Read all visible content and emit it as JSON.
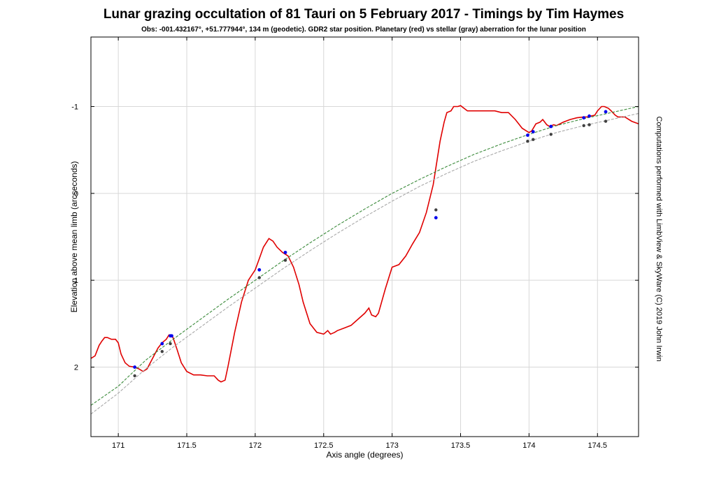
{
  "chart_data": {
    "type": "line",
    "title": "Lunar grazing occultation of 81 Tauri on 5 February 2017 - Timings by Tim Haymes",
    "subtitle": "Obs: -001.432167°, +51.777944°, 134 m (geodetic). GDR2 star position. Planetary (red) vs stellar (gray) aberration for the lunar position",
    "side_note": "Computations performed with LimbView & SkyWare (C) 2019 John Irwin",
    "xlabel": "Axis angle (degrees)",
    "ylabel": "Elevation above mean limb (arcseconds)",
    "xlim": [
      170.8,
      174.8
    ],
    "ylim": [
      2.8,
      -1.8
    ],
    "y_inverted": true,
    "grid": true,
    "x_ticks": [
      171,
      171.5,
      172,
      172.5,
      173,
      173.5,
      174,
      174.5
    ],
    "x_tick_labels": [
      "171",
      "171.5",
      "172",
      "172.5",
      "173",
      "173.5",
      "174",
      "174.5"
    ],
    "y_ticks": [
      -1,
      0,
      1,
      2
    ],
    "y_tick_labels": [
      "-1",
      "0",
      "1",
      "2"
    ],
    "colors": {
      "limb": "#e00000",
      "planetary": "#3a8a3a",
      "stellar": "#a8a8a8",
      "planetary_points": "#0000ee",
      "stellar_points": "#404040"
    },
    "series": [
      {
        "style": "solid",
        "x": [
          170.8,
          170.83,
          170.86,
          170.88,
          170.9,
          170.92,
          170.95,
          170.98,
          171.0,
          171.02,
          171.05,
          171.08,
          171.12,
          171.15,
          171.18,
          171.21,
          171.25,
          171.29,
          171.32,
          171.35,
          171.37,
          171.4,
          171.43,
          171.46,
          171.5,
          171.55,
          171.6,
          171.65,
          171.7,
          171.73,
          171.75,
          171.78,
          171.8,
          171.85,
          171.9,
          171.95,
          172.0,
          172.03,
          172.06,
          172.1,
          172.13,
          172.16,
          172.2,
          172.24,
          172.28,
          172.32,
          172.35,
          172.4,
          172.45,
          172.5,
          172.53,
          172.55,
          172.58,
          172.6,
          172.65,
          172.7,
          172.75,
          172.8,
          172.83,
          172.85,
          172.88,
          172.9,
          172.95,
          173.0,
          173.05,
          173.1,
          173.15,
          173.2,
          173.25,
          173.3,
          173.35,
          173.38,
          173.4,
          173.43,
          173.45,
          173.48,
          173.5,
          173.55,
          173.6,
          173.65,
          173.7,
          173.75,
          173.8,
          173.85,
          173.9,
          173.95,
          174.0,
          174.02,
          174.05,
          174.08,
          174.1,
          174.13,
          174.15,
          174.18,
          174.2,
          174.25,
          174.3,
          174.35,
          174.4,
          174.43,
          174.45,
          174.48,
          174.5,
          174.53,
          174.55,
          174.58,
          174.6,
          174.63,
          174.65,
          174.7,
          174.75,
          174.8
        ],
        "y": [
          1.9,
          1.87,
          1.75,
          1.7,
          1.66,
          1.66,
          1.68,
          1.68,
          1.72,
          1.85,
          1.95,
          1.99,
          2.0,
          2.02,
          2.05,
          2.02,
          1.9,
          1.78,
          1.72,
          1.68,
          1.63,
          1.66,
          1.8,
          1.95,
          2.05,
          2.09,
          2.09,
          2.1,
          2.1,
          2.15,
          2.17,
          2.15,
          2.0,
          1.6,
          1.25,
          1.0,
          0.88,
          0.75,
          0.62,
          0.52,
          0.55,
          0.62,
          0.68,
          0.72,
          0.85,
          1.05,
          1.25,
          1.5,
          1.6,
          1.62,
          1.58,
          1.62,
          1.6,
          1.58,
          1.55,
          1.52,
          1.45,
          1.38,
          1.32,
          1.4,
          1.42,
          1.38,
          1.1,
          0.85,
          0.82,
          0.72,
          0.58,
          0.45,
          0.22,
          -0.1,
          -0.6,
          -0.82,
          -0.93,
          -0.95,
          -1.0,
          -1.0,
          -1.01,
          -0.95,
          -0.95,
          -0.95,
          -0.95,
          -0.95,
          -0.93,
          -0.93,
          -0.85,
          -0.75,
          -0.7,
          -0.72,
          -0.8,
          -0.82,
          -0.85,
          -0.79,
          -0.77,
          -0.79,
          -0.78,
          -0.82,
          -0.85,
          -0.87,
          -0.88,
          -0.88,
          -0.89,
          -0.9,
          -0.95,
          -1.0,
          -1.0,
          -0.98,
          -0.95,
          -0.9,
          -0.88,
          -0.88,
          -0.83,
          -0.8
        ]
      },
      {
        "style": "dashed",
        "x": [
          170.8,
          171.0,
          171.2,
          171.4,
          171.6,
          171.8,
          172.0,
          172.2,
          172.4,
          172.6,
          172.8,
          173.0,
          173.2,
          173.4,
          173.6,
          173.8,
          174.0,
          174.2,
          174.4,
          174.6,
          174.8
        ],
        "y": [
          2.44,
          2.22,
          1.92,
          1.68,
          1.45,
          1.22,
          1.0,
          0.78,
          0.57,
          0.37,
          0.18,
          0.0,
          -0.16,
          -0.31,
          -0.45,
          -0.57,
          -0.68,
          -0.78,
          -0.86,
          -0.93,
          -1.0
        ]
      },
      {
        "style": "dashed",
        "x": [
          170.8,
          171.0,
          171.2,
          171.4,
          171.6,
          171.8,
          172.0,
          172.2,
          172.4,
          172.6,
          172.8,
          173.0,
          173.2,
          173.4,
          173.6,
          173.8,
          174.0,
          174.2,
          174.4,
          174.6,
          174.8
        ],
        "y": [
          2.54,
          2.3,
          2.02,
          1.77,
          1.54,
          1.31,
          1.09,
          0.87,
          0.66,
          0.46,
          0.27,
          0.09,
          -0.08,
          -0.23,
          -0.37,
          -0.49,
          -0.6,
          -0.7,
          -0.78,
          -0.85,
          -0.92
        ]
      }
    ],
    "planetary_points": [
      [
        171.12,
        2.0
      ],
      [
        171.32,
        1.73
      ],
      [
        171.38,
        1.64
      ],
      [
        171.39,
        1.64
      ],
      [
        172.03,
        0.88
      ],
      [
        172.22,
        0.68
      ],
      [
        173.32,
        0.28
      ],
      [
        173.99,
        -0.67
      ],
      [
        174.03,
        -0.71
      ],
      [
        174.16,
        -0.77
      ],
      [
        174.4,
        -0.87
      ],
      [
        174.44,
        -0.89
      ],
      [
        174.56,
        -0.94
      ]
    ],
    "stellar_points": [
      [
        171.12,
        2.1
      ],
      [
        171.32,
        1.82
      ],
      [
        171.38,
        1.73
      ],
      [
        172.03,
        0.97
      ],
      [
        172.22,
        0.77
      ],
      [
        173.32,
        0.19
      ],
      [
        173.99,
        -0.6
      ],
      [
        174.03,
        -0.62
      ],
      [
        174.16,
        -0.68
      ],
      [
        174.4,
        -0.78
      ],
      [
        174.44,
        -0.79
      ],
      [
        174.56,
        -0.83
      ]
    ]
  }
}
